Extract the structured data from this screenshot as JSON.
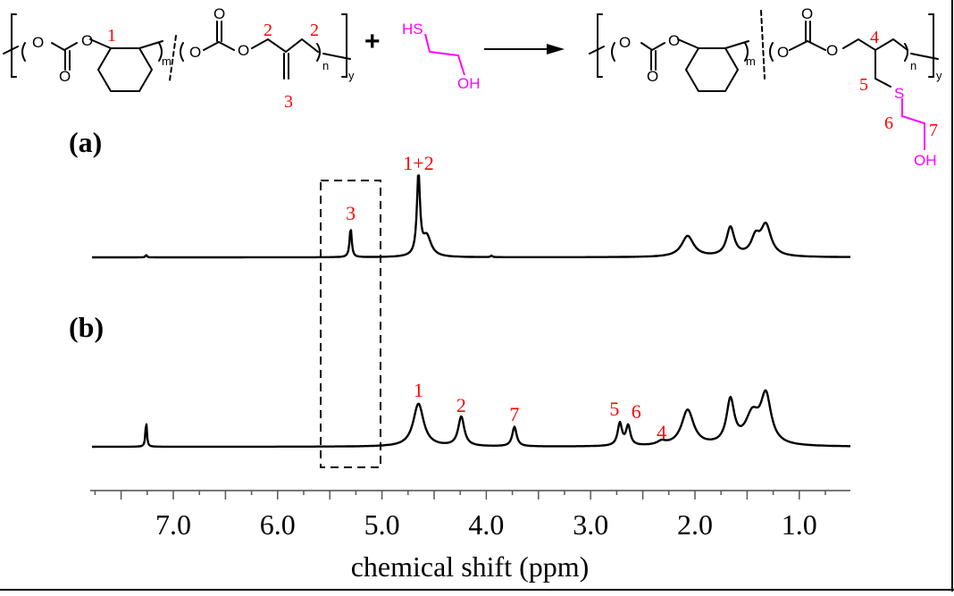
{
  "scheme": {
    "reactant_polymer": {
      "name": "poly(cyclohexene carbonate)-co-(methallyl carbonate)",
      "subscripts": [
        "m",
        "n",
        "y"
      ],
      "proton_labels": [
        "1",
        "2",
        "2",
        "3"
      ]
    },
    "plus_sign": "+",
    "reagent": {
      "top": "HS",
      "bottom": "OH",
      "color": "#ff00ff"
    },
    "arrow": "→",
    "product_polymer": {
      "subscripts": [
        "m",
        "n",
        "y"
      ],
      "proton_labels": [
        "4",
        "5",
        "6",
        "7"
      ],
      "heteroatoms": [
        "S",
        "OH"
      ],
      "graft_color": "#ff00ff"
    },
    "label_color": "#ff0000"
  },
  "panels": {
    "a": {
      "label": "(a)"
    },
    "b": {
      "label": "(b)"
    }
  },
  "chart_data": {
    "type": "line",
    "title": "",
    "xlabel": "chemical shift (ppm)",
    "ylabel": "",
    "xlim": [
      7.78,
      0.51
    ],
    "x_reversed": true,
    "xticks": [
      7.0,
      6.0,
      5.0,
      4.0,
      3.0,
      2.0,
      1.0
    ],
    "xtick_labels": [
      "7.0",
      "6.0",
      "5.0",
      "4.0",
      "3.0",
      "2.0",
      "1.0"
    ],
    "minor_tick_step": 0.25,
    "grid": false,
    "legend": null,
    "highlight_box": {
      "x_range_ppm": [
        5.55,
        4.98
      ],
      "style": "dashed",
      "spans": [
        "a",
        "b"
      ]
    },
    "series": [
      {
        "name": "(a)",
        "peaks": [
          {
            "shift": 7.26,
            "rel_height": 0.03,
            "label": ""
          },
          {
            "shift": 5.3,
            "rel_height": 0.37,
            "label": "3"
          },
          {
            "shift": 4.65,
            "rel_height": 1.0,
            "label": "1+2"
          },
          {
            "shift": 4.57,
            "rel_height": 0.25,
            "label": ""
          },
          {
            "shift": 3.95,
            "rel_height": 0.02,
            "label": ""
          },
          {
            "shift": 2.07,
            "rel_height": 0.26,
            "label": ""
          },
          {
            "shift": 1.66,
            "rel_height": 0.36,
            "label": ""
          },
          {
            "shift": 1.42,
            "rel_height": 0.21,
            "label": ""
          },
          {
            "shift": 1.32,
            "rel_height": 0.38,
            "label": ""
          }
        ]
      },
      {
        "name": "(b)",
        "peaks": [
          {
            "shift": 7.26,
            "rel_height": 0.58,
            "label": ""
          },
          {
            "shift": 4.65,
            "rel_height": 0.96,
            "label": "1"
          },
          {
            "shift": 4.24,
            "rel_height": 0.66,
            "label": "2"
          },
          {
            "shift": 3.73,
            "rel_height": 0.44,
            "label": "7"
          },
          {
            "shift": 2.72,
            "rel_height": 0.5,
            "label": "5"
          },
          {
            "shift": 2.64,
            "rel_height": 0.44,
            "label": "6"
          },
          {
            "shift": 2.32,
            "rel_height": 0.08,
            "label": "4"
          },
          {
            "shift": 2.07,
            "rel_height": 0.8,
            "label": ""
          },
          {
            "shift": 1.66,
            "rel_height": 0.98,
            "label": ""
          },
          {
            "shift": 1.45,
            "rel_height": 0.64,
            "label": ""
          },
          {
            "shift": 1.32,
            "rel_height": 1.06,
            "label": ""
          }
        ]
      }
    ]
  }
}
